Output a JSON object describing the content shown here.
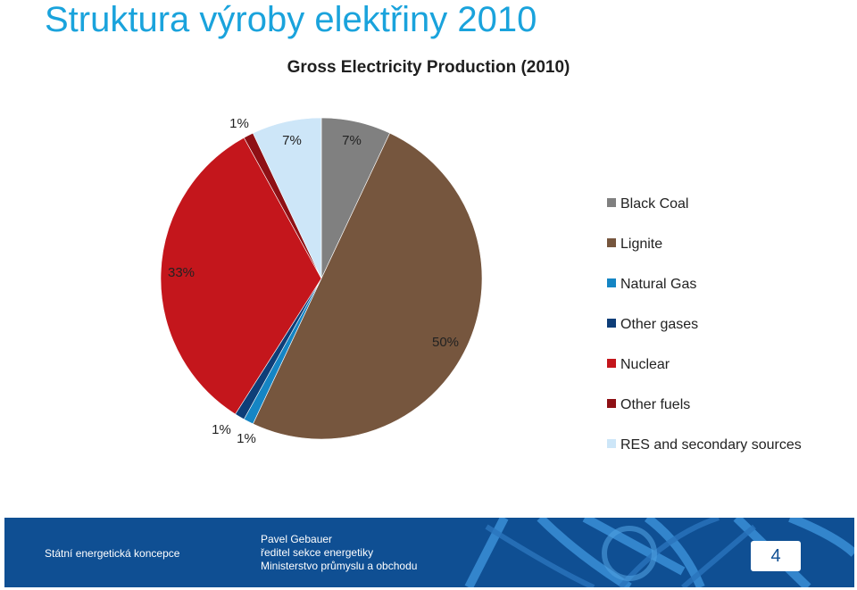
{
  "slide": {
    "title": "Struktura výroby elektřiny 2010"
  },
  "chart_data": {
    "type": "pie",
    "title": "Gross Electricity Production (2010)",
    "legend_position": "right",
    "slices": [
      {
        "label": "Black Coal",
        "value": 7,
        "display": "7%",
        "color": "#808080"
      },
      {
        "label": "Lignite",
        "value": 50,
        "display": "50%",
        "color": "#76563e"
      },
      {
        "label": "Natural Gas",
        "value": 1,
        "display": "1%",
        "color": "#1585c4"
      },
      {
        "label": "Other gases",
        "value": 1,
        "display": "1%",
        "color": "#0e3e78"
      },
      {
        "label": "Nuclear",
        "value": 33,
        "display": "33%",
        "color": "#c4161c"
      },
      {
        "label": "Other fuels",
        "value": 1,
        "display": "1%",
        "color": "#8e1015"
      },
      {
        "label": "RES and secondary sources",
        "value": 7,
        "display": "7%",
        "color": "#cde6f8"
      }
    ]
  },
  "footer": {
    "org": "Státní energetická koncepce",
    "author_name": "Pavel Gebauer",
    "author_role": "ředitel sekce energetiky",
    "ministry": "Ministerstvo  průmyslu a obchodu",
    "page_number": "4"
  }
}
